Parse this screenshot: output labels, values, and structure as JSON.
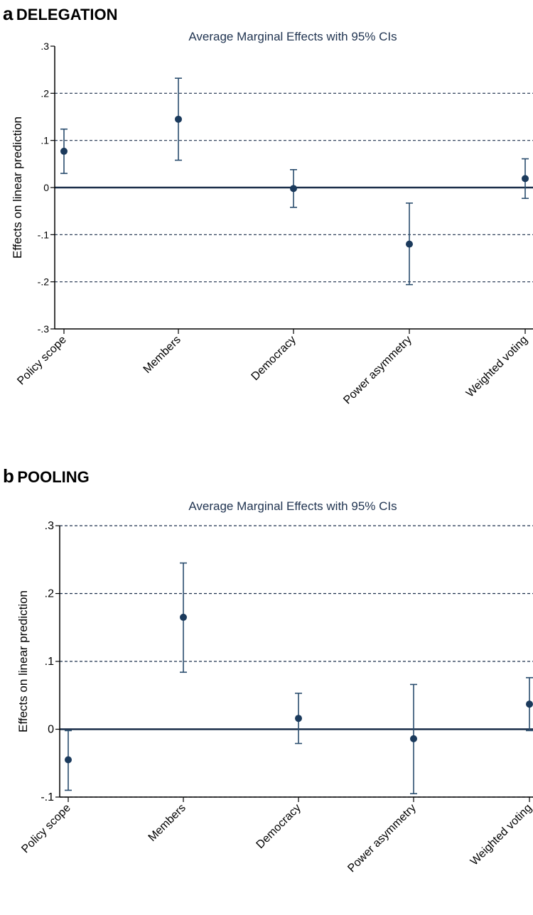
{
  "colors": {
    "marker": "#1b3a5c",
    "ci": "#2a4d6e",
    "grid": "#1b2f4a",
    "title": "#1f3350"
  },
  "panels": [
    {
      "letter": "a",
      "name": "DELEGATION"
    },
    {
      "letter": "b",
      "name": "POOLING"
    }
  ],
  "chart_data": [
    {
      "type": "scatter",
      "title": "Average Marginal Effects with 95% CIs",
      "xlabel": "",
      "ylabel": "Effects on linear prediction",
      "categories": [
        "Policy scope",
        "Members",
        "Democracy",
        "Power asymmetry",
        "Weighted voting"
      ],
      "estimates": [
        0.077,
        0.145,
        -0.002,
        -0.12,
        0.019
      ],
      "ci_lower": [
        0.03,
        0.058,
        -0.042,
        -0.206,
        -0.023
      ],
      "ci_upper": [
        0.124,
        0.232,
        0.038,
        -0.033,
        0.061
      ],
      "ylim": [
        -0.3,
        0.3
      ],
      "yticks": [
        -0.3,
        -0.2,
        -0.1,
        0,
        0.1,
        0.2,
        0.3
      ],
      "ytick_labels": [
        "-.3",
        "-.2",
        "-.1",
        "0",
        ".1",
        ".2",
        ".3"
      ],
      "grid_lines": [
        -0.2,
        -0.1,
        0.1,
        0.2
      ],
      "zero_line": true
    },
    {
      "type": "scatter",
      "title": "Average Marginal Effects with 95% CIs",
      "xlabel": "",
      "ylabel": "Effects on linear prediction",
      "categories": [
        "Policy scope",
        "Members",
        "Democracy",
        "Power asymmetry",
        "Weighted voting"
      ],
      "estimates": [
        -0.045,
        0.165,
        0.016,
        -0.014,
        0.037
      ],
      "ci_lower": [
        -0.09,
        0.084,
        -0.021,
        -0.095,
        -0.002
      ],
      "ci_upper": [
        -0.002,
        0.245,
        0.053,
        0.066,
        0.076
      ],
      "ylim": [
        -0.1,
        0.3
      ],
      "yticks": [
        -0.1,
        0,
        0.1,
        0.2,
        0.3
      ],
      "ytick_labels": [
        "-.1",
        "0",
        ".1",
        ".2",
        ".3"
      ],
      "grid_lines": [
        -0.1,
        0.1,
        0.2,
        0.3
      ],
      "zero_line": true
    }
  ]
}
